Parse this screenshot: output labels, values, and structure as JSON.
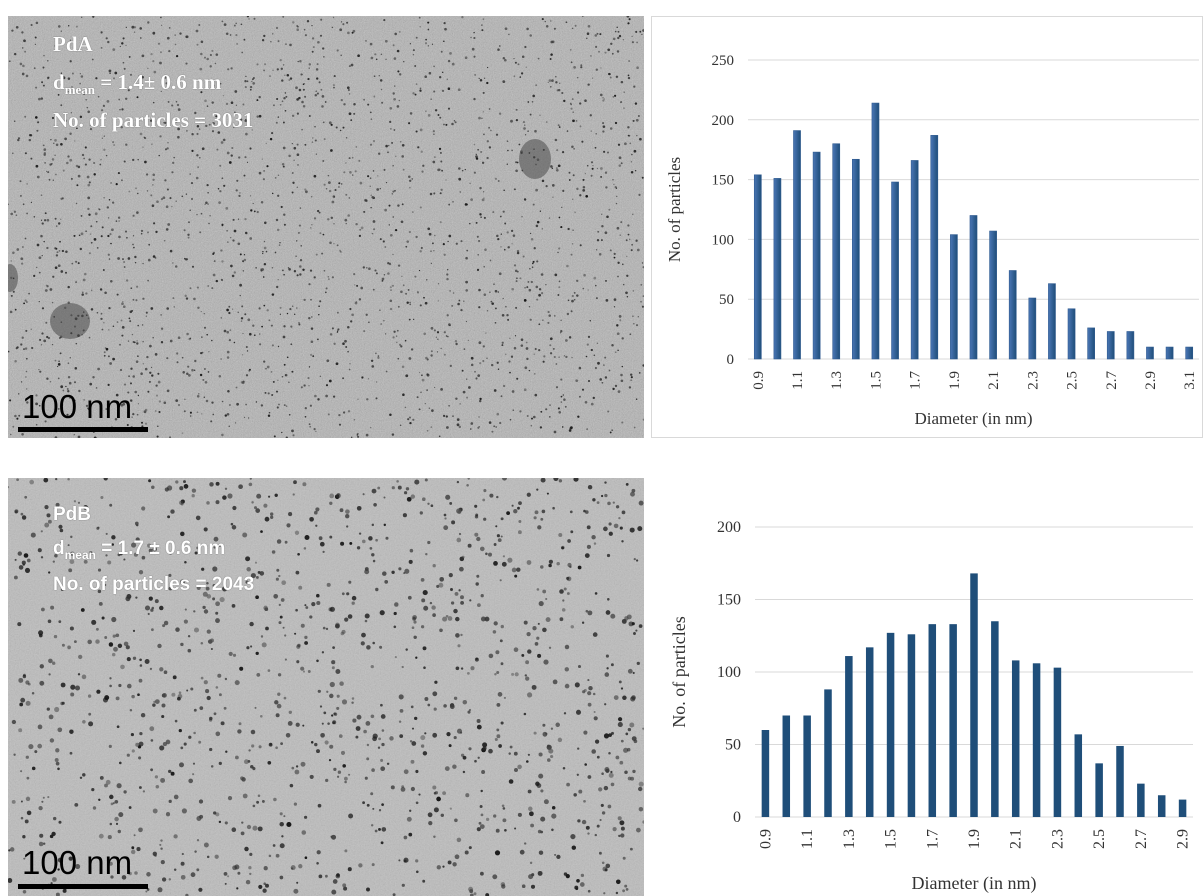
{
  "panels": [
    {
      "micrograph": {
        "sample_label": "PdA",
        "dmean_symbol": "d",
        "dmean_subscript": "mean",
        "dmean_value": " = 1.4± 0.6 nm",
        "particle_count_text": "No. of particles = 3031",
        "scale_bar_label": "100 nm"
      }
    },
    {
      "micrograph": {
        "sample_label": "PdB",
        "dmean_symbol": "d",
        "dmean_subscript": "mean",
        "dmean_value": " = 1.7 ± 0.6 nm",
        "particle_count_text": "No. of particles = 2043",
        "scale_bar_label": "100 nm"
      }
    }
  ],
  "colors": {
    "bar_fill_top": "#4a76b5",
    "bar_fill_bottom": "#1f4e79",
    "gridline": "#d9d9d9"
  },
  "chart_data": [
    {
      "type": "bar",
      "categories": [
        "0.9",
        "1",
        "1.1",
        "1.2",
        "1.3",
        "1.4",
        "1.5",
        "1.6",
        "1.7",
        "1.8",
        "1.9",
        "2",
        "2.1",
        "2.2",
        "2.3",
        "2.4",
        "2.5",
        "2.6",
        "2.7",
        "2.8",
        "2.9",
        "3",
        "3.1"
      ],
      "tick_labels": [
        "0.9",
        "1.1",
        "1.3",
        "1.5",
        "1.7",
        "1.9",
        "2.1",
        "2.3",
        "2.5",
        "2.7",
        "2.9",
        "3.1"
      ],
      "values": [
        154,
        151,
        191,
        173,
        180,
        167,
        214,
        148,
        166,
        187,
        104,
        120,
        107,
        74,
        51,
        63,
        42,
        26,
        23,
        23,
        10,
        10,
        10
      ],
      "yticks": [
        "0",
        "50",
        "100",
        "150",
        "200",
        "250"
      ],
      "xlabel": "Diameter (in nm)",
      "ylabel": "No. of particles",
      "ylim": [
        0,
        250
      ],
      "grid": true
    },
    {
      "type": "bar",
      "categories": [
        "0.9",
        "1",
        "1.1",
        "1.2",
        "1.3",
        "1.4",
        "1.5",
        "1.6",
        "1.7",
        "1.8",
        "1.9",
        "2",
        "2.1",
        "2.2",
        "2.3",
        "2.4",
        "2.5",
        "2.6",
        "2.7",
        "2.8",
        "2.9"
      ],
      "tick_labels": [
        "0.9",
        "1.1",
        "1.3",
        "1.5",
        "1.7",
        "1.9",
        "2.1",
        "2.3",
        "2.5",
        "2.7",
        "2.9"
      ],
      "values": [
        60,
        70,
        70,
        88,
        111,
        117,
        127,
        126,
        133,
        133,
        168,
        135,
        108,
        106,
        103,
        57,
        37,
        49,
        23,
        15,
        12
      ],
      "yticks": [
        "0",
        "50",
        "100",
        "150",
        "200"
      ],
      "xlabel": "Diameter (in nm)",
      "ylabel": "No. of particles",
      "ylim": [
        0,
        200
      ],
      "grid": true
    }
  ]
}
